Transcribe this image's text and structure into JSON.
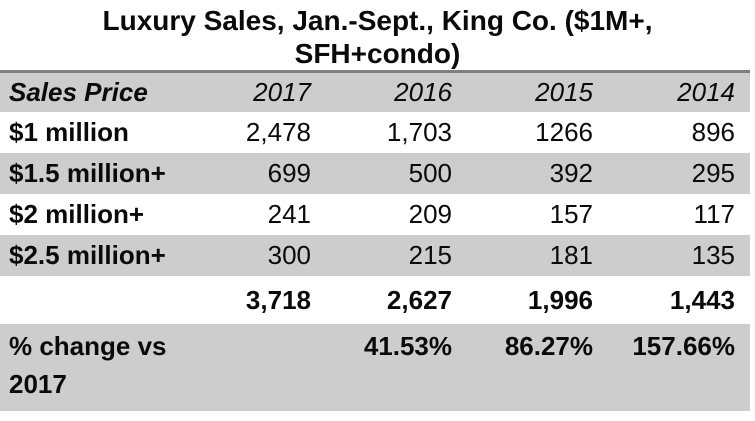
{
  "colors": {
    "row_shade": "#CDCDCD",
    "header_rule": "#7F7F7F",
    "text": "#0A0A0A",
    "background": "#FFFFFF"
  },
  "chart_data": {
    "type": "table",
    "title": "Luxury Sales, Jan.-Sept., King Co. ($1M+, SFH+condo)",
    "columns": [
      "Sales Price",
      "2017",
      "2016",
      "2015",
      "2014"
    ],
    "rows": [
      {
        "label": "$1 million",
        "values": [
          "2,478",
          "1,703",
          "1266",
          "896"
        ]
      },
      {
        "label": "$1.5 million+",
        "values": [
          "699",
          "500",
          "392",
          "295"
        ]
      },
      {
        "label": "$2 million+",
        "values": [
          "241",
          "209",
          "157",
          "117"
        ]
      },
      {
        "label": "$2.5 million+",
        "values": [
          "300",
          "215",
          "181",
          "135"
        ]
      }
    ],
    "totals": {
      "label": "",
      "values": [
        "3,718",
        "2,627",
        "1,996",
        "1,443"
      ]
    },
    "pct_change": {
      "label": "% change vs 2017",
      "values": [
        "",
        "41.53%",
        "86.27%",
        "157.66%"
      ]
    },
    "layout": {
      "header_shaded": true,
      "alternating_rows": true,
      "numbers_right_aligned": true
    }
  }
}
